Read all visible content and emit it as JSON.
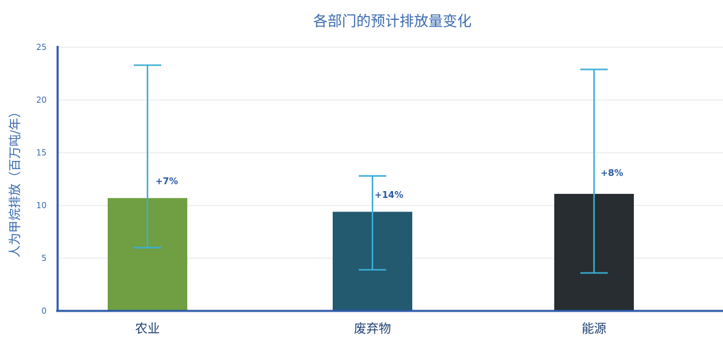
{
  "chart_data": {
    "type": "bar",
    "title": "各部门的预计排放量变化",
    "ylabel": "人为甲烷排放（百万吨/年）",
    "xlabel": "",
    "categories": [
      "农业",
      "废弃物",
      "能源"
    ],
    "values": [
      10.7,
      9.4,
      11.1
    ],
    "error_low": [
      6.0,
      3.9,
      3.6
    ],
    "error_high": [
      23.3,
      12.8,
      22.9
    ],
    "annotations": [
      "+7%",
      "+14%",
      "+8%"
    ],
    "bar_colors": [
      "#6f9f42",
      "#235a70",
      "#272d30"
    ],
    "ylim": [
      0,
      25
    ],
    "yticks": [
      "0",
      "5",
      "10",
      "15",
      "20",
      "25"
    ],
    "grid": true,
    "legend": "none"
  },
  "colors": {
    "title": "#3a6ab0",
    "ylabel": "#3a6ab0",
    "tick": "#3a6ab0",
    "axis": "#2c5aa8",
    "grid": "#e3e3e3",
    "errorbar": "#3aafd6",
    "annotation": "#2c5aa8",
    "category": "#1f3f73"
  }
}
